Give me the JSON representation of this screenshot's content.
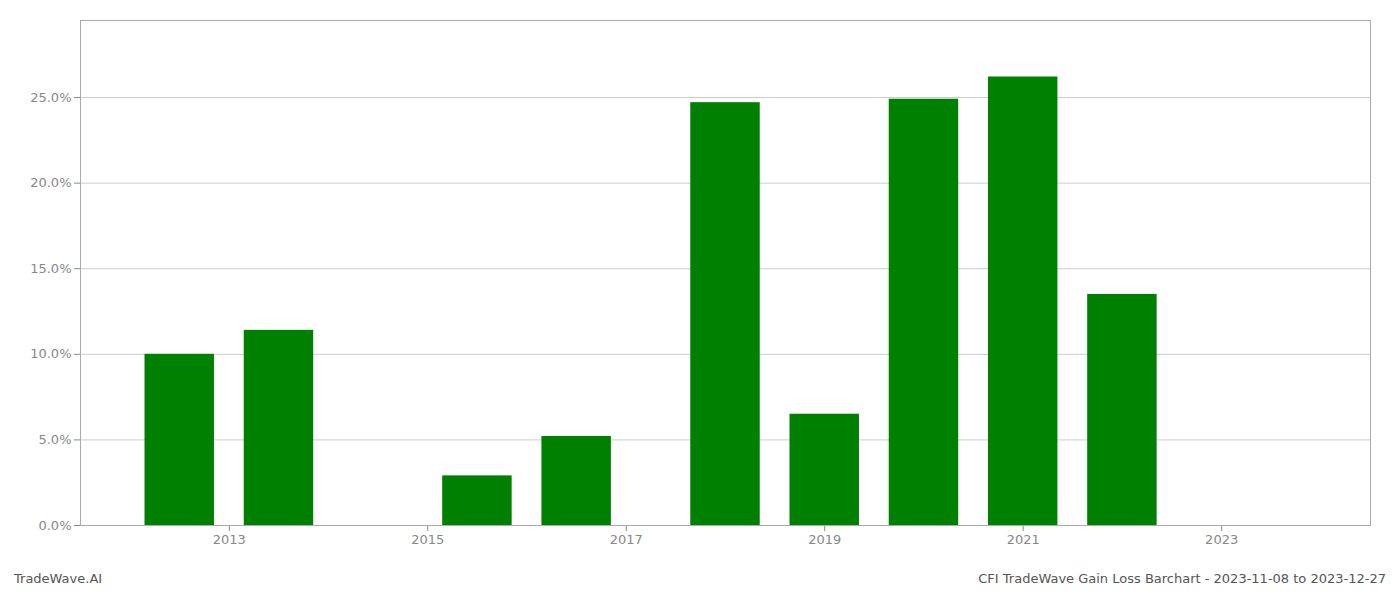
{
  "chart_data": {
    "type": "bar",
    "x": [
      2012.5,
      2013.5,
      2015.5,
      2016.5,
      2018.0,
      2019.0,
      2020.0,
      2021.0,
      2022.0
    ],
    "values": [
      0.1,
      0.114,
      0.029,
      0.052,
      0.247,
      0.065,
      0.249,
      0.262,
      0.135
    ],
    "color": "#008000",
    "xlim": [
      2011.5,
      2024.5
    ],
    "xticks": [
      2013,
      2015,
      2017,
      2019,
      2021,
      2023
    ],
    "ylim": [
      0.0,
      0.295
    ],
    "yticks": [
      {
        "value": 0.0,
        "label": "0.0%"
      },
      {
        "value": 0.05,
        "label": "5.0%"
      },
      {
        "value": 0.1,
        "label": "10.0%"
      },
      {
        "value": 0.15,
        "label": "15.0%"
      },
      {
        "value": 0.2,
        "label": "20.0%"
      },
      {
        "value": 0.25,
        "label": "25.0%"
      }
    ],
    "grid": true,
    "annotations": [
      "TradeWave.AI",
      "CFI TradeWave Gain Loss Barchart - 2023-11-08 to 2023-12-27"
    ]
  }
}
